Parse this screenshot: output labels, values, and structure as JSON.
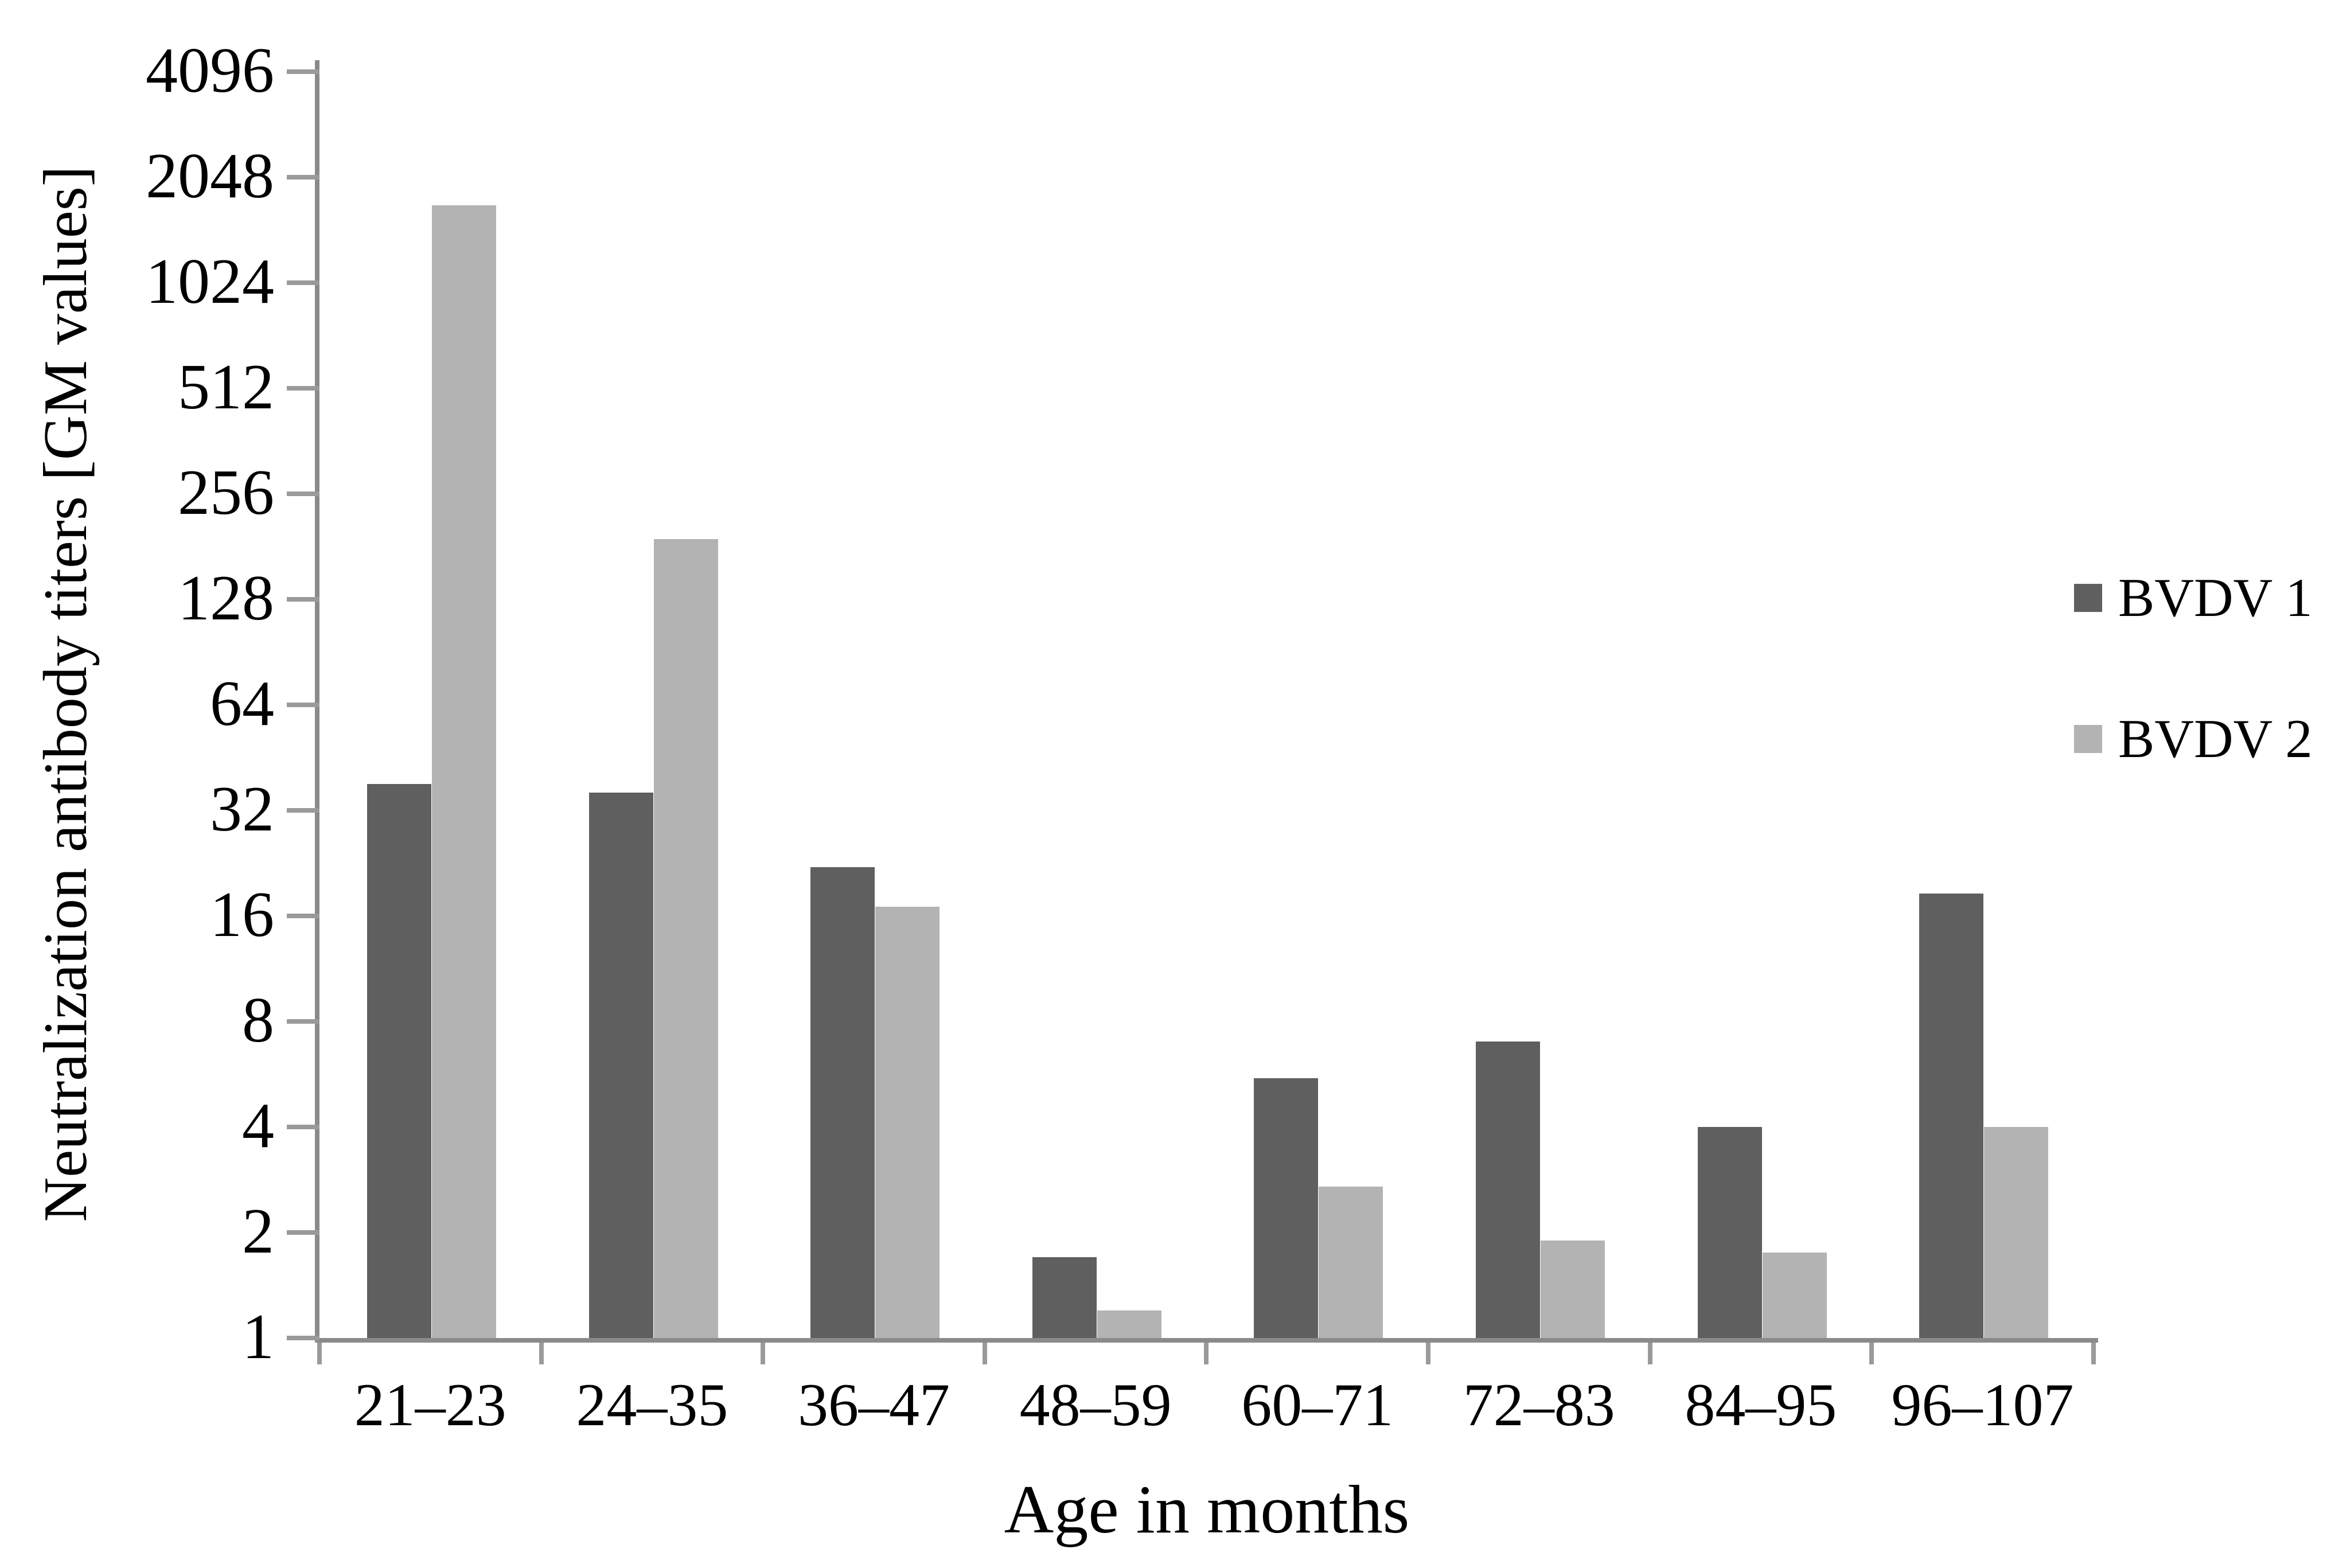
{
  "chart_data": {
    "type": "bar",
    "title": "",
    "xlabel": "Age in months",
    "ylabel": "Neutralization antibody titers [GM values]",
    "categories": [
      "21–23",
      "24–35",
      "36–47",
      "48–59",
      "60–71",
      "72–83",
      "84–95",
      "96–107"
    ],
    "series": [
      {
        "name": "BVDV 1",
        "color": "#5f5f5f",
        "values": [
          38,
          36,
          22,
          1.7,
          5.5,
          7,
          4,
          18.5
        ]
      },
      {
        "name": "BVDV 2",
        "color": "#b3b3b3",
        "values": [
          1700,
          190,
          17,
          1.2,
          2.7,
          1.9,
          1.75,
          4
        ]
      }
    ],
    "y_scale": "log2",
    "ylim": [
      1,
      4096
    ],
    "y_ticks": [
      "4096",
      "2048",
      "1024",
      "512",
      "256",
      "128",
      "64",
      "32",
      "16",
      "8",
      "4",
      "2",
      "1"
    ],
    "grid": "off",
    "legend_position": "right",
    "axis_color": "#8a8a8a",
    "tick_color": "#9a9a9a",
    "text_color": "#000000",
    "background_color": "#ffffff"
  }
}
